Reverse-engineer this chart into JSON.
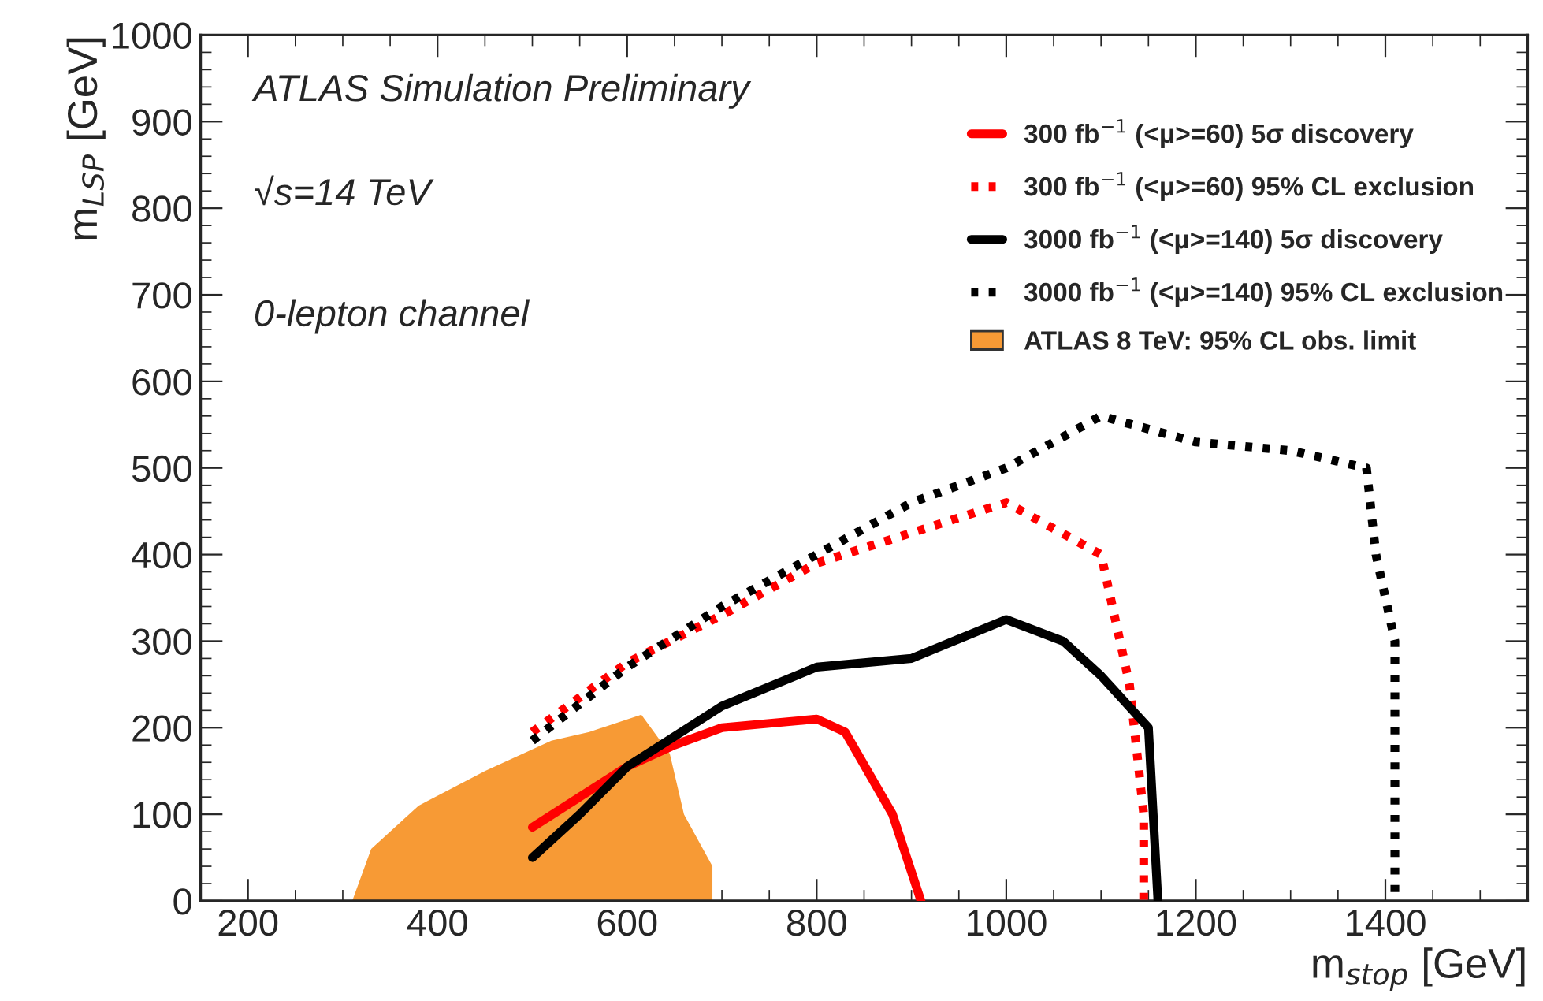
{
  "chart_data": {
    "type": "line",
    "xlabel": "m$_{stop}$ [GeV]",
    "ylabel": "m$_{LSP}$ [GeV]",
    "xlim": [
      150,
      1550
    ],
    "xticks": [
      200,
      400,
      600,
      800,
      1000,
      1200,
      1400
    ],
    "ylim": [
      0,
      1000
    ],
    "yticks": [
      0,
      100,
      200,
      300,
      400,
      500,
      600,
      700,
      800,
      900,
      1000
    ],
    "grid": false,
    "legend": "top right",
    "annotations": [
      "ATLAS Simulation Preliminary",
      "√s=14 TeV",
      "0-lepton channel"
    ],
    "series": [
      {
        "name": "300 fb$^{−1}$ (<μ>=60) 5σ discovery",
        "color": "#ff0000",
        "line_style": "solid",
        "x": [
          500,
          550,
          600,
          650,
          700,
          800,
          830,
          880,
          910
        ],
        "values": [
          85,
          120,
          155,
          180,
          200,
          210,
          195,
          100,
          0
        ]
      },
      {
        "name": "300 fb$^{−1}$ (<μ>=60) 95% CL exclusion",
        "color": "#ff0000",
        "line_style": "dotted",
        "x": [
          500,
          600,
          700,
          800,
          1000,
          1100,
          1130,
          1145,
          1145
        ],
        "values": [
          195,
          275,
          330,
          390,
          460,
          400,
          250,
          100,
          0
        ]
      },
      {
        "name": "3000 fb$^{−1}$ (<μ>=140) 5σ discovery",
        "color": "#000000",
        "line_style": "solid",
        "x": [
          500,
          550,
          600,
          700,
          800,
          900,
          1000,
          1060,
          1100,
          1150,
          1160
        ],
        "values": [
          50,
          100,
          155,
          225,
          270,
          280,
          325,
          300,
          260,
          200,
          0
        ]
      },
      {
        "name": "3000 fb$^{−1}$ (<μ>=140) 95% CL exclusion",
        "color": "#000000",
        "line_style": "dotted",
        "x": [
          500,
          600,
          700,
          800,
          900,
          1000,
          1100,
          1200,
          1300,
          1380,
          1390,
          1410,
          1410
        ],
        "values": [
          185,
          270,
          340,
          400,
          460,
          500,
          560,
          530,
          520,
          500,
          400,
          300,
          0
        ]
      },
      {
        "name": "ATLAS 8 TeV: 95% CL obs. limit",
        "type": "area",
        "color": "#f79a35",
        "x": [
          310,
          330,
          380,
          450,
          520,
          560,
          615,
          645,
          660,
          690,
          690
        ],
        "values": [
          0,
          60,
          110,
          150,
          185,
          195,
          215,
          170,
          100,
          40,
          0
        ]
      }
    ]
  }
}
